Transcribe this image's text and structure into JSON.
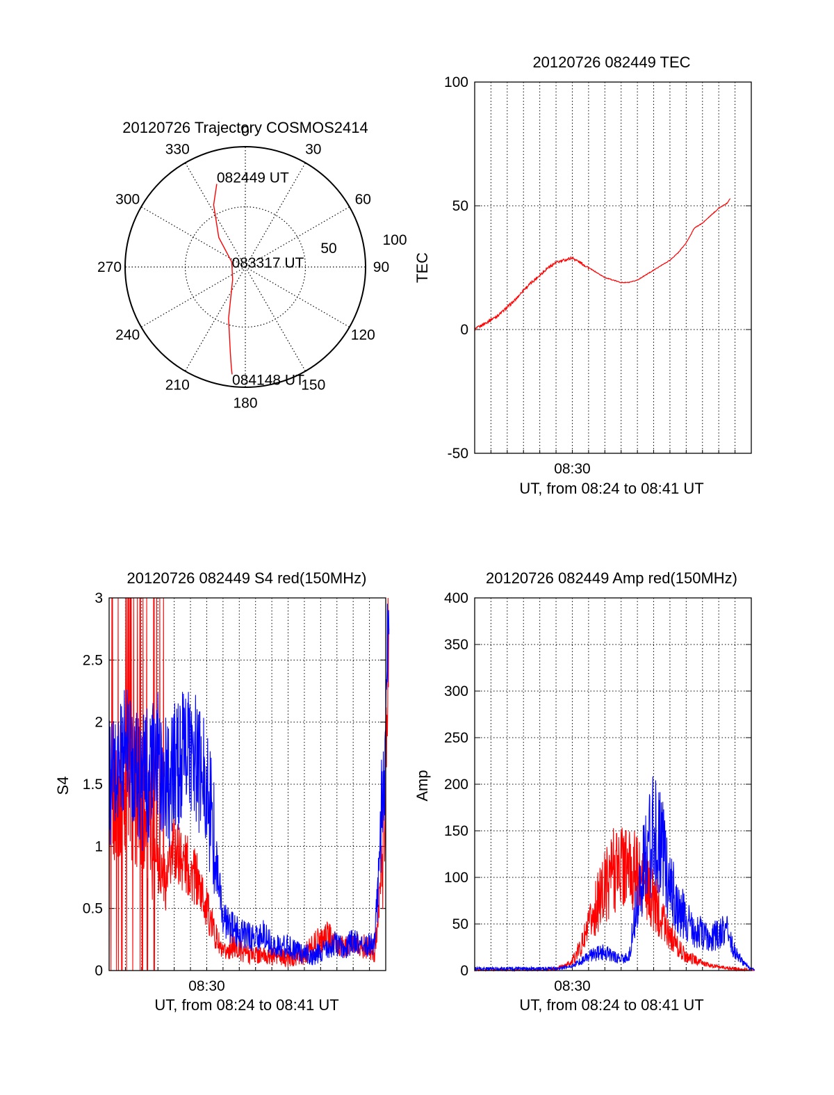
{
  "chart_data": [
    {
      "type": "polar",
      "title": "20120726 Trajectory COSMOS2414",
      "angle_labels": [
        "0",
        "30",
        "60",
        "90",
        "120",
        "150",
        "180",
        "210",
        "240",
        "270",
        "300",
        "330"
      ],
      "radial_labels": [
        "50",
        "100"
      ],
      "radial_rings": [
        50,
        100
      ],
      "series": [
        {
          "color": "#ff0000",
          "points": [
            [
              341,
              73
            ],
            [
              333,
              58
            ],
            [
              318,
              33
            ],
            [
              290,
              12
            ],
            [
              225,
              15
            ],
            [
              198,
              45
            ],
            [
              190,
              72
            ],
            [
              188,
              84
            ],
            [
              187,
              90
            ]
          ]
        }
      ],
      "annotations": [
        {
          "text": "082449 UT",
          "az": 341,
          "r": 73
        },
        {
          "text": "083317 UT",
          "az": 290,
          "r": 12
        },
        {
          "text": "084148 UT",
          "az": 187,
          "r": 90
        }
      ]
    },
    {
      "type": "line",
      "title": "20120726 082449 TEC",
      "ylabel": "TEC",
      "xlabel": "UT, from 08:24 to 08:41 UT",
      "xtick_label": "08:30",
      "ylim": [
        -50,
        100
      ],
      "yticks": [
        "-50",
        "0",
        "50",
        "100"
      ],
      "series": [
        {
          "color": "#ff0000",
          "x": [
            0,
            0.5,
            1,
            1.5,
            2,
            2.5,
            3,
            3.5,
            4,
            4.5,
            5,
            5.5,
            6,
            6.5,
            7,
            7.5,
            8,
            8.5,
            9,
            9.5,
            10,
            10.5,
            11,
            11.5,
            12,
            12.5,
            13,
            13.5,
            14,
            14.5,
            15,
            15.5,
            15.7
          ],
          "y": [
            0,
            2,
            4,
            6,
            9,
            12,
            16,
            19,
            22,
            25,
            27,
            28,
            29,
            27,
            25,
            23,
            21,
            20,
            19,
            19,
            20,
            22,
            24,
            26,
            28,
            31,
            35,
            41,
            43,
            46,
            49,
            51,
            53
          ]
        }
      ]
    },
    {
      "type": "line",
      "title": "20120726 082449 S4 red(150MHz)",
      "ylabel": "S4",
      "xlabel": "UT, from 08:24 to 08:41 UT",
      "xtick_label": "08:30",
      "ylim": [
        0,
        3
      ],
      "yticks": [
        "0",
        "0.5",
        "1",
        "1.5",
        "2",
        "2.5",
        "3"
      ],
      "series": [
        {
          "color": "#ff0000",
          "x": [
            0,
            0.5,
            1,
            1.5,
            2,
            2.5,
            3,
            3.5,
            4,
            4.5,
            5,
            5.5,
            6,
            6.5,
            7,
            7.5,
            8,
            8.5,
            9,
            9.5,
            10,
            10.5,
            11,
            11.5,
            12,
            12.5,
            13,
            13.5,
            14,
            14.5,
            15,
            15.5,
            16,
            16.3,
            16.6,
            17,
            17.2
          ],
          "y": [
            1.3,
            1.4,
            1.5,
            1.4,
            1.3,
            1.2,
            0.9,
            0.7,
            1.0,
            0.9,
            0.8,
            0.7,
            0.5,
            0.3,
            0.12,
            0.2,
            0.17,
            0.14,
            0.13,
            0.12,
            0.12,
            0.11,
            0.1,
            0.12,
            0.13,
            0.2,
            0.25,
            0.28,
            0.2,
            0.18,
            0.22,
            0.2,
            0.18,
            0.15,
            0.5,
            1.5,
            3.0
          ]
        },
        {
          "color": "#0000ff",
          "x": [
            0,
            0.5,
            1,
            1.5,
            2,
            2.5,
            3,
            3.5,
            4,
            4.5,
            5,
            5.5,
            6,
            6.5,
            7,
            7.5,
            8,
            8.5,
            9,
            9.5,
            10,
            10.5,
            11,
            11.5,
            12,
            12.5,
            13,
            13.5,
            14,
            14.5,
            15,
            15.5,
            16,
            16.3,
            16.6,
            17,
            17.2
          ],
          "y": [
            1.5,
            1.6,
            1.8,
            1.7,
            1.5,
            1.6,
            1.7,
            1.5,
            1.6,
            1.7,
            1.8,
            1.6,
            1.5,
            1.0,
            0.4,
            0.35,
            0.3,
            0.28,
            0.25,
            0.3,
            0.22,
            0.18,
            0.2,
            0.15,
            0.14,
            0.12,
            0.15,
            0.2,
            0.22,
            0.18,
            0.25,
            0.2,
            0.22,
            0.2,
            0.8,
            2.0,
            3.0
          ]
        }
      ]
    },
    {
      "type": "line",
      "title": "20120726 082449 Amp red(150MHz)",
      "ylabel": "Amp",
      "xlabel": "UT, from 08:24 to 08:41 UT",
      "xtick_label": "08:30",
      "ylim": [
        0,
        400
      ],
      "yticks": [
        "0",
        "50",
        "100",
        "150",
        "200",
        "250",
        "300",
        "350",
        "400"
      ],
      "series": [
        {
          "color": "#ff0000",
          "x": [
            0,
            2,
            4,
            5,
            5.5,
            6,
            6.5,
            7,
            7.5,
            8,
            8.5,
            9,
            9.5,
            10,
            10.5,
            11,
            11.5,
            12,
            12.5,
            13,
            13.5,
            14,
            14.5,
            15,
            15.5,
            16,
            16.5,
            17,
            17.2
          ],
          "y": [
            0,
            0,
            0,
            2,
            5,
            10,
            25,
            45,
            70,
            90,
            110,
            115,
            110,
            100,
            90,
            75,
            60,
            40,
            25,
            15,
            12,
            8,
            5,
            4,
            3,
            2,
            1,
            0,
            0
          ]
        },
        {
          "color": "#0000ff",
          "x": [
            0,
            2,
            4,
            5,
            5.5,
            6,
            6.5,
            7,
            7.5,
            8,
            8.5,
            9,
            9.5,
            10,
            10.5,
            11,
            11.5,
            12,
            12.5,
            13,
            13.5,
            14,
            14.5,
            15,
            15.5,
            16,
            16.5,
            17,
            17.2
          ],
          "y": [
            2,
            2,
            2,
            2,
            3,
            5,
            10,
            15,
            18,
            20,
            15,
            12,
            15,
            80,
            120,
            150,
            130,
            90,
            70,
            55,
            45,
            40,
            35,
            40,
            45,
            20,
            8,
            2,
            1
          ]
        }
      ]
    }
  ]
}
